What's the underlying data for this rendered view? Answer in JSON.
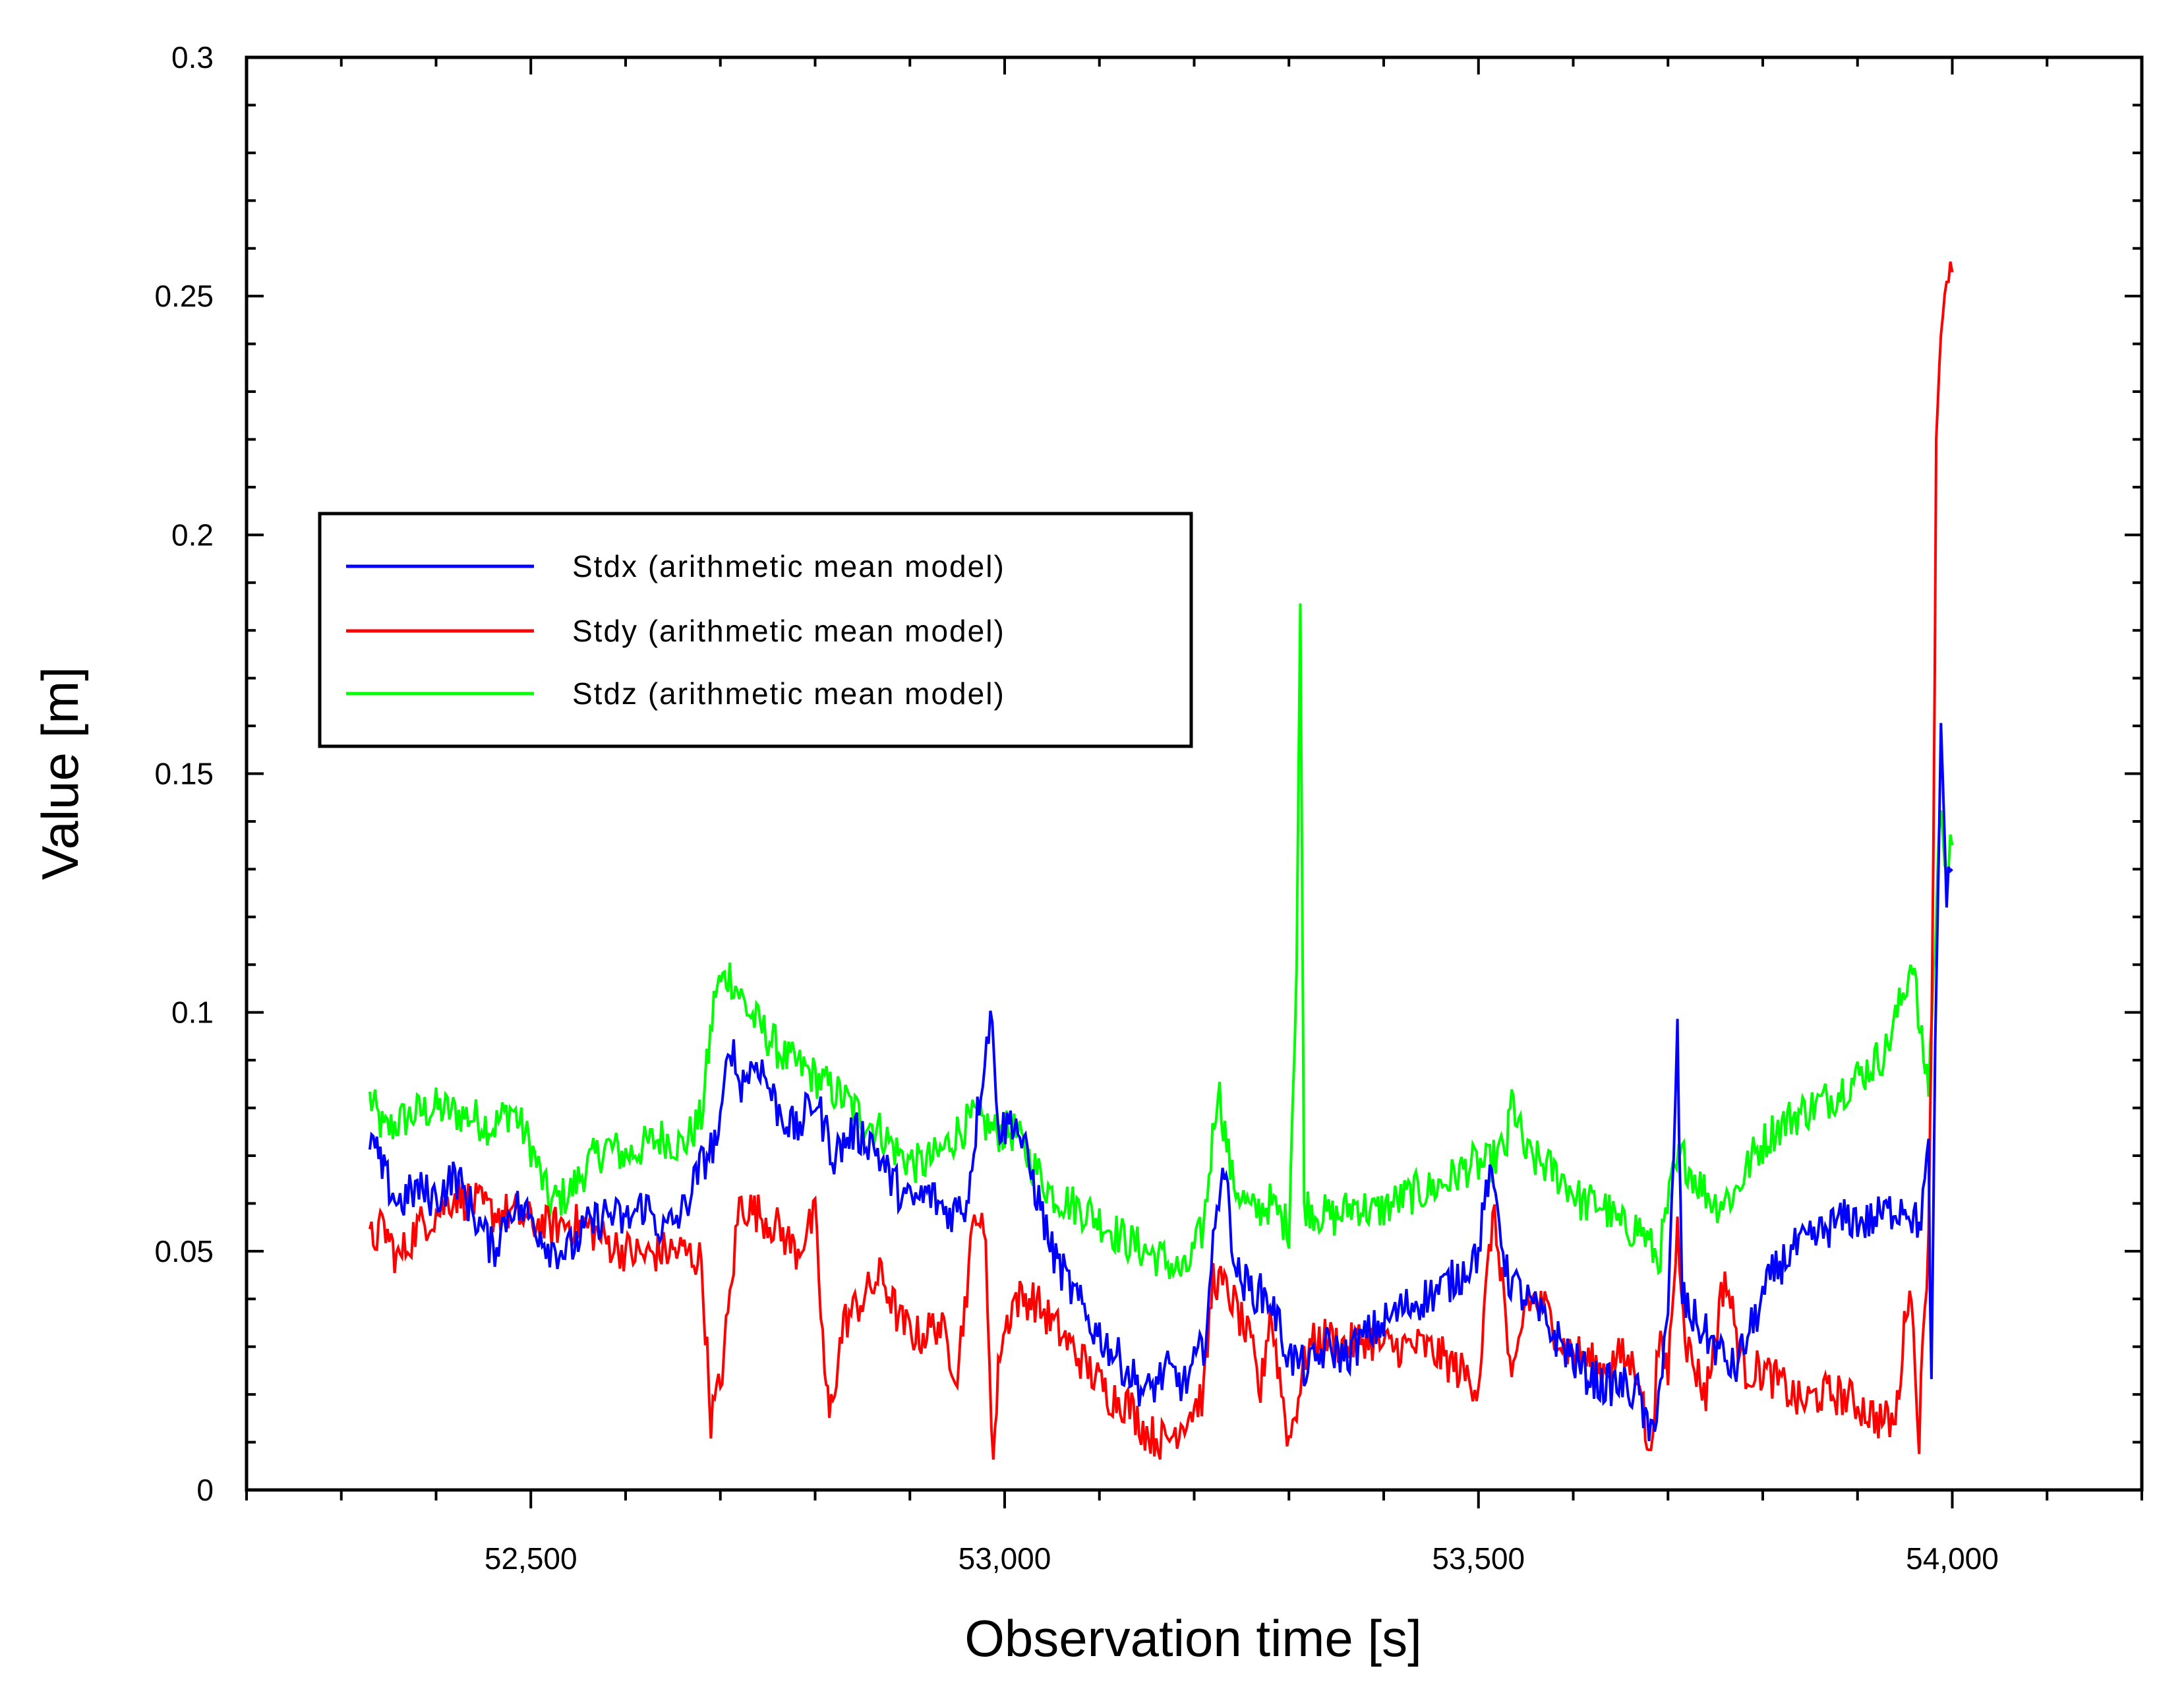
{
  "chart_data": {
    "type": "line",
    "title": "",
    "xlabel": "Observation time [s]",
    "ylabel": "Value [m]",
    "xlim": [
      52200,
      54200
    ],
    "ylim": [
      0,
      0.3
    ],
    "xticks": [
      52500,
      53000,
      53500,
      54000
    ],
    "xtick_labels": [
      "52,500",
      "53,000",
      "53,500",
      "54,000"
    ],
    "yticks": [
      0,
      0.05,
      0.1,
      0.15,
      0.2,
      0.25,
      0.3
    ],
    "ytick_labels": [
      "0",
      "0.05",
      "0.1",
      "0.15",
      "0.2",
      "0.25",
      "0.3"
    ],
    "legend_position": "center-left",
    "series": [
      {
        "name": "Stdx (arithmetic mean model)",
        "color": "#0000ff",
        "points": [
          [
            52330,
            0.074
          ],
          [
            52345,
            0.066
          ],
          [
            52360,
            0.06
          ],
          [
            52380,
            0.063
          ],
          [
            52400,
            0.061
          ],
          [
            52420,
            0.066
          ],
          [
            52440,
            0.058
          ],
          [
            52460,
            0.05
          ],
          [
            52480,
            0.06
          ],
          [
            52500,
            0.057
          ],
          [
            52520,
            0.051
          ],
          [
            52540,
            0.05
          ],
          [
            52560,
            0.055
          ],
          [
            52580,
            0.058
          ],
          [
            52600,
            0.056
          ],
          [
            52620,
            0.06
          ],
          [
            52640,
            0.054
          ],
          [
            52660,
            0.058
          ],
          [
            52680,
            0.068
          ],
          [
            52700,
            0.075
          ],
          [
            52710,
            0.095
          ],
          [
            52720,
            0.085
          ],
          [
            52740,
            0.09
          ],
          [
            52760,
            0.08
          ],
          [
            52780,
            0.075
          ],
          [
            52800,
            0.082
          ],
          [
            52820,
            0.07
          ],
          [
            52840,
            0.075
          ],
          [
            52860,
            0.073
          ],
          [
            52880,
            0.065
          ],
          [
            52900,
            0.06
          ],
          [
            52920,
            0.062
          ],
          [
            52940,
            0.058
          ],
          [
            52960,
            0.06
          ],
          [
            52975,
            0.085
          ],
          [
            52985,
            0.1
          ],
          [
            52995,
            0.075
          ],
          [
            53010,
            0.078
          ],
          [
            53030,
            0.065
          ],
          [
            53050,
            0.05
          ],
          [
            53070,
            0.042
          ],
          [
            53090,
            0.035
          ],
          [
            53110,
            0.03
          ],
          [
            53130,
            0.025
          ],
          [
            53150,
            0.02
          ],
          [
            53170,
            0.025
          ],
          [
            53190,
            0.022
          ],
          [
            53210,
            0.03
          ],
          [
            53230,
            0.07
          ],
          [
            53245,
            0.045
          ],
          [
            53260,
            0.042
          ],
          [
            53280,
            0.04
          ],
          [
            53300,
            0.028
          ],
          [
            53320,
            0.025
          ],
          [
            53340,
            0.03
          ],
          [
            53360,
            0.028
          ],
          [
            53380,
            0.032
          ],
          [
            53400,
            0.035
          ],
          [
            53420,
            0.038
          ],
          [
            53440,
            0.04
          ],
          [
            53460,
            0.042
          ],
          [
            53480,
            0.045
          ],
          [
            53500,
            0.05
          ],
          [
            53510,
            0.065
          ],
          [
            53520,
            0.06
          ],
          [
            53530,
            0.045
          ],
          [
            53550,
            0.04
          ],
          [
            53570,
            0.035
          ],
          [
            53590,
            0.03
          ],
          [
            53610,
            0.025
          ],
          [
            53630,
            0.022
          ],
          [
            53650,
            0.022
          ],
          [
            53670,
            0.02
          ],
          [
            53680,
            0.01
          ],
          [
            53690,
            0.02
          ],
          [
            53700,
            0.035
          ],
          [
            53710,
            0.095
          ],
          [
            53715,
            0.04
          ],
          [
            53730,
            0.035
          ],
          [
            53750,
            0.03
          ],
          [
            53770,
            0.025
          ],
          [
            53790,
            0.035
          ],
          [
            53810,
            0.045
          ],
          [
            53830,
            0.05
          ],
          [
            53850,
            0.052
          ],
          [
            53870,
            0.055
          ],
          [
            53890,
            0.057
          ],
          [
            53910,
            0.056
          ],
          [
            53930,
            0.058
          ],
          [
            53950,
            0.06
          ],
          [
            53965,
            0.055
          ],
          [
            53975,
            0.07
          ],
          [
            53978,
            0.02
          ],
          [
            53982,
            0.09
          ],
          [
            53988,
            0.16
          ],
          [
            53994,
            0.125
          ],
          [
            54000,
            0.13
          ]
        ]
      },
      {
        "name": "Stdy (arithmetic mean model)",
        "color": "#ff0000",
        "points": [
          [
            52330,
            0.052
          ],
          [
            52345,
            0.055
          ],
          [
            52360,
            0.048
          ],
          [
            52380,
            0.055
          ],
          [
            52400,
            0.058
          ],
          [
            52420,
            0.062
          ],
          [
            52440,
            0.06
          ],
          [
            52460,
            0.058
          ],
          [
            52480,
            0.058
          ],
          [
            52500,
            0.056
          ],
          [
            52520,
            0.055
          ],
          [
            52540,
            0.056
          ],
          [
            52560,
            0.055
          ],
          [
            52580,
            0.052
          ],
          [
            52600,
            0.05
          ],
          [
            52620,
            0.049
          ],
          [
            52640,
            0.05
          ],
          [
            52660,
            0.05
          ],
          [
            52680,
            0.048
          ],
          [
            52690,
            0.015
          ],
          [
            52700,
            0.022
          ],
          [
            52710,
            0.04
          ],
          [
            52720,
            0.06
          ],
          [
            52740,
            0.058
          ],
          [
            52760,
            0.055
          ],
          [
            52780,
            0.05
          ],
          [
            52800,
            0.057
          ],
          [
            52810,
            0.025
          ],
          [
            52815,
            0.015
          ],
          [
            52830,
            0.035
          ],
          [
            52850,
            0.04
          ],
          [
            52870,
            0.045
          ],
          [
            52890,
            0.035
          ],
          [
            52910,
            0.032
          ],
          [
            52930,
            0.035
          ],
          [
            52950,
            0.025
          ],
          [
            52970,
            0.06
          ],
          [
            52980,
            0.05
          ],
          [
            52988,
            0.006
          ],
          [
            52995,
            0.03
          ],
          [
            53010,
            0.04
          ],
          [
            53030,
            0.04
          ],
          [
            53050,
            0.035
          ],
          [
            53070,
            0.03
          ],
          [
            53090,
            0.025
          ],
          [
            53110,
            0.02
          ],
          [
            53130,
            0.018
          ],
          [
            53150,
            0.012
          ],
          [
            53170,
            0.01
          ],
          [
            53190,
            0.015
          ],
          [
            53210,
            0.02
          ],
          [
            53220,
            0.045
          ],
          [
            53240,
            0.04
          ],
          [
            53260,
            0.03
          ],
          [
            53270,
            0.02
          ],
          [
            53280,
            0.038
          ],
          [
            53300,
            0.01
          ],
          [
            53320,
            0.03
          ],
          [
            53340,
            0.032
          ],
          [
            53360,
            0.03
          ],
          [
            53380,
            0.032
          ],
          [
            53400,
            0.03
          ],
          [
            53420,
            0.03
          ],
          [
            53440,
            0.03
          ],
          [
            53460,
            0.028
          ],
          [
            53480,
            0.025
          ],
          [
            53500,
            0.022
          ],
          [
            53515,
            0.058
          ],
          [
            53525,
            0.045
          ],
          [
            53535,
            0.02
          ],
          [
            53550,
            0.04
          ],
          [
            53570,
            0.038
          ],
          [
            53590,
            0.03
          ],
          [
            53610,
            0.028
          ],
          [
            53630,
            0.025
          ],
          [
            53650,
            0.028
          ],
          [
            53670,
            0.025
          ],
          [
            53680,
            0.005
          ],
          [
            53690,
            0.03
          ],
          [
            53700,
            0.025
          ],
          [
            53710,
            0.055
          ],
          [
            53720,
            0.03
          ],
          [
            53740,
            0.02
          ],
          [
            53760,
            0.045
          ],
          [
            53780,
            0.025
          ],
          [
            53800,
            0.025
          ],
          [
            53820,
            0.022
          ],
          [
            53840,
            0.018
          ],
          [
            53860,
            0.02
          ],
          [
            53880,
            0.02
          ],
          [
            53900,
            0.018
          ],
          [
            53920,
            0.015
          ],
          [
            53940,
            0.014
          ],
          [
            53955,
            0.045
          ],
          [
            53965,
            0.012
          ],
          [
            53975,
            0.055
          ],
          [
            53980,
            0.13
          ],
          [
            53983,
            0.22
          ],
          [
            53988,
            0.245
          ],
          [
            53994,
            0.25
          ],
          [
            54000,
            0.255
          ]
        ]
      },
      {
        "name": "Stdz (arithmetic mean model)",
        "color": "#00ff00",
        "points": [
          [
            52330,
            0.082
          ],
          [
            52345,
            0.075
          ],
          [
            52360,
            0.077
          ],
          [
            52380,
            0.079
          ],
          [
            52400,
            0.08
          ],
          [
            52420,
            0.079
          ],
          [
            52440,
            0.078
          ],
          [
            52460,
            0.076
          ],
          [
            52480,
            0.08
          ],
          [
            52500,
            0.072
          ],
          [
            52520,
            0.06
          ],
          [
            52540,
            0.062
          ],
          [
            52560,
            0.068
          ],
          [
            52580,
            0.072
          ],
          [
            52600,
            0.07
          ],
          [
            52620,
            0.072
          ],
          [
            52640,
            0.074
          ],
          [
            52660,
            0.072
          ],
          [
            52680,
            0.078
          ],
          [
            52695,
            0.105
          ],
          [
            52710,
            0.108
          ],
          [
            52730,
            0.1
          ],
          [
            52750,
            0.095
          ],
          [
            52770,
            0.09
          ],
          [
            52790,
            0.088
          ],
          [
            52810,
            0.085
          ],
          [
            52830,
            0.082
          ],
          [
            52850,
            0.078
          ],
          [
            52870,
            0.075
          ],
          [
            52890,
            0.07
          ],
          [
            52910,
            0.068
          ],
          [
            52930,
            0.07
          ],
          [
            52950,
            0.075
          ],
          [
            52970,
            0.078
          ],
          [
            52990,
            0.075
          ],
          [
            53010,
            0.075
          ],
          [
            53030,
            0.068
          ],
          [
            53050,
            0.062
          ],
          [
            53070,
            0.06
          ],
          [
            53090,
            0.058
          ],
          [
            53110,
            0.055
          ],
          [
            53130,
            0.052
          ],
          [
            53150,
            0.05
          ],
          [
            53170,
            0.048
          ],
          [
            53190,
            0.045
          ],
          [
            53210,
            0.055
          ],
          [
            53225,
            0.085
          ],
          [
            53240,
            0.065
          ],
          [
            53260,
            0.058
          ],
          [
            53280,
            0.06
          ],
          [
            53300,
            0.055
          ],
          [
            53308,
            0.11
          ],
          [
            53312,
            0.185
          ],
          [
            53316,
            0.06
          ],
          [
            53330,
            0.058
          ],
          [
            53350,
            0.057
          ],
          [
            53370,
            0.06
          ],
          [
            53390,
            0.058
          ],
          [
            53410,
            0.06
          ],
          [
            53430,
            0.062
          ],
          [
            53450,
            0.063
          ],
          [
            53470,
            0.065
          ],
          [
            53490,
            0.068
          ],
          [
            53510,
            0.068
          ],
          [
            53530,
            0.072
          ],
          [
            53535,
            0.082
          ],
          [
            53550,
            0.07
          ],
          [
            53570,
            0.068
          ],
          [
            53590,
            0.065
          ],
          [
            53610,
            0.06
          ],
          [
            53630,
            0.06
          ],
          [
            53650,
            0.055
          ],
          [
            53670,
            0.055
          ],
          [
            53690,
            0.048
          ],
          [
            53705,
            0.065
          ],
          [
            53715,
            0.07
          ],
          [
            53730,
            0.065
          ],
          [
            53750,
            0.06
          ],
          [
            53770,
            0.062
          ],
          [
            53790,
            0.07
          ],
          [
            53810,
            0.075
          ],
          [
            53830,
            0.078
          ],
          [
            53850,
            0.08
          ],
          [
            53870,
            0.082
          ],
          [
            53890,
            0.085
          ],
          [
            53910,
            0.088
          ],
          [
            53930,
            0.092
          ],
          [
            53950,
            0.105
          ],
          [
            53958,
            0.112
          ],
          [
            53966,
            0.095
          ],
          [
            53975,
            0.085
          ],
          [
            53982,
            0.115
          ],
          [
            53988,
            0.145
          ],
          [
            53994,
            0.13
          ],
          [
            54000,
            0.135
          ]
        ]
      }
    ]
  }
}
